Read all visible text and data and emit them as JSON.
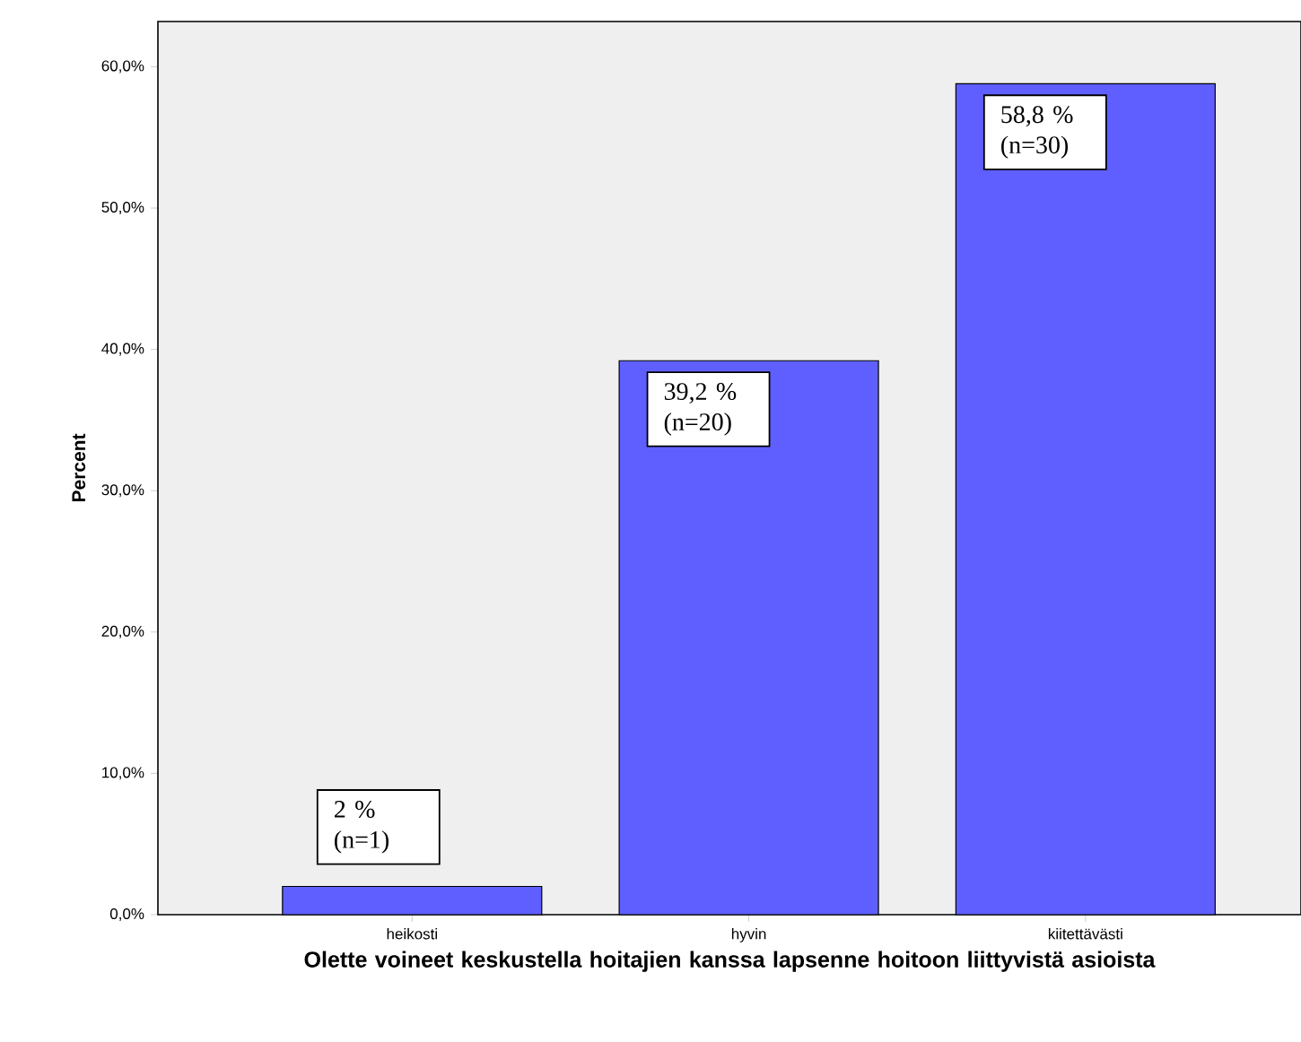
{
  "chart_data": {
    "type": "bar",
    "xlabel": "Olette voineet keskustella hoitajien kanssa lapsenne hoitoon liittyvistä asioista",
    "ylabel": "Percent",
    "categories": [
      "heikosti",
      "hyvin",
      "kiitettävästi"
    ],
    "values": [
      2,
      39.2,
      58.8
    ],
    "value_labels": [
      "2 % (n=1)",
      "39,2 % (n=20)",
      "58,8 % (n=30)"
    ],
    "color": "#5f5fff",
    "ylim": [
      0,
      63.2
    ],
    "yticks": [
      {
        "value": 0,
        "label": "0,0%"
      },
      {
        "value": 10,
        "label": "10,0%"
      },
      {
        "value": 20,
        "label": "20,0%"
      },
      {
        "value": 30,
        "label": "30,0%"
      },
      {
        "value": 40,
        "label": "40,0%"
      },
      {
        "value": 50,
        "label": "50,0%"
      },
      {
        "value": 60,
        "label": "60,0%"
      }
    ],
    "grid": false
  }
}
